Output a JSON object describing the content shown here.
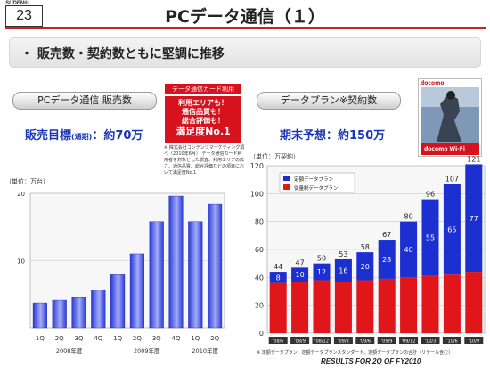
{
  "header": {
    "logo": "SUDEN®",
    "page_number": "23",
    "title": "PCデータ通信（１）"
  },
  "headline": "・ 販売数・契約数ともに堅調に推移",
  "left_panel": {
    "tab_label": "PCデータ通信 販売数",
    "target_a": "販売目標",
    "target_b": "(通期)",
    "target_c": "：約70万"
  },
  "promo": {
    "header": "データ通信カード利用",
    "line1": "利用エリアも！",
    "line2": "通信品質も！",
    "line3": "総合評価も！",
    "line4": "満足度No.1",
    "note": "※ 株式会社コンテンツマーケティング調べ（2010年6月） データ通信カード利用者を対象とした調査。利用エリアの広さ、通信品質、総合評価などの項目において満足度No.1"
  },
  "right_panel": {
    "tab_label": "データプラン※契約数",
    "forecast": "期末予想：約150万",
    "product_top": "docomo",
    "product_bottom": "docomo Wi-Fi",
    "footnote": "※ 定額データプラン、定額データプランスタンダード、定額データプランの合計（リテール含む）"
  },
  "footer": "RESULTS FOR 2Q OF FY2010",
  "chart_data": [
    {
      "type": "bar",
      "unit_label": "（単位：万台）",
      "categories": [
        "1Q",
        "2Q",
        "3Q",
        "4Q",
        "1Q",
        "2Q",
        "3Q",
        "4Q",
        "1Q",
        "2Q"
      ],
      "year_groups": [
        {
          "label": "2008年度",
          "span": [
            0,
            3
          ]
        },
        {
          "label": "2009年度",
          "span": [
            4,
            7
          ]
        },
        {
          "label": "2010年度",
          "span": [
            8,
            9
          ]
        }
      ],
      "values": [
        3.7,
        4.1,
        4.6,
        5.6,
        7.9,
        11.0,
        15.8,
        19.6,
        15.8,
        18.4
      ],
      "ylim": [
        0,
        20
      ],
      "yticks": [
        10,
        20
      ],
      "grid": true,
      "colors": {
        "bar_dark": "#2a39d8",
        "bar_light": "#a3adf8"
      }
    },
    {
      "type": "bar",
      "stacked": true,
      "unit_label": "（単位：万契約）",
      "categories": [
        "'08/6",
        "'08/9",
        "'08/12",
        "'09/3",
        "'09/6",
        "'09/9",
        "'09/12",
        "'10/3",
        "'10/6",
        "'10/9"
      ],
      "series": [
        {
          "name": "定額データプラン",
          "values": [
            8,
            10,
            12,
            16,
            20,
            28,
            40,
            55,
            65,
            77
          ],
          "color": "#1c2fd0"
        },
        {
          "name": "従量制データプラン",
          "values": [
            36,
            37,
            38,
            37,
            38,
            39,
            40,
            41,
            42,
            44
          ],
          "color": "#e0161a"
        }
      ],
      "totals": [
        44,
        47,
        50,
        53,
        58,
        67,
        80,
        96,
        107,
        121
      ],
      "ylim": [
        0,
        120
      ],
      "yticks": [
        0,
        20,
        40,
        60,
        80,
        100,
        120
      ],
      "legend_position": "top-left",
      "grid": true
    }
  ]
}
